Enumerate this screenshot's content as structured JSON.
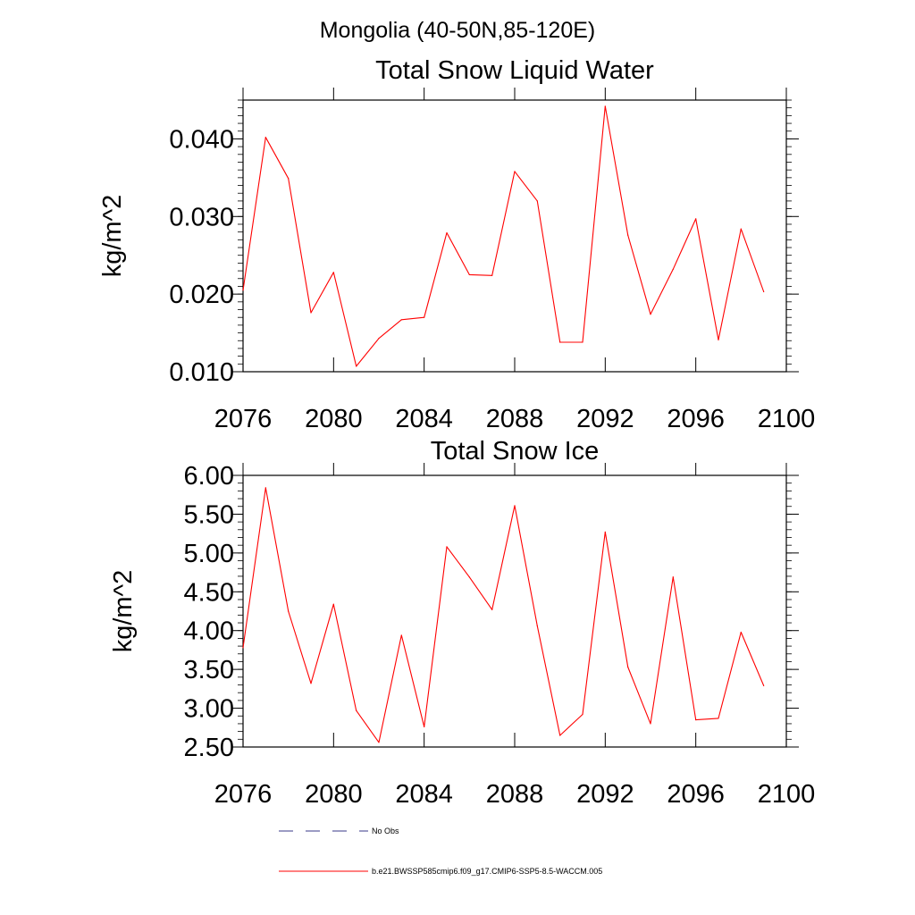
{
  "figure": {
    "title": "Mongolia (40-50N,85-120E)"
  },
  "chart_data": [
    {
      "type": "line",
      "title": "Total Snow Liquid Water",
      "xlabel": "",
      "ylabel": "kg/m^2",
      "xlim": [
        2076,
        2100
      ],
      "ylim": [
        0.01,
        0.045
      ],
      "xticks": [
        "2076",
        "2080",
        "2084",
        "2088",
        "2092",
        "2096",
        "2100"
      ],
      "yticks": [
        "0.010",
        "0.020",
        "0.030",
        "0.040"
      ],
      "grid": false,
      "series": [
        {
          "name": "b.e21.BWSSP585cmip6.f09_g17.CMIP6-SSP5-8.5-WACCM.005",
          "color": "#ff0000",
          "x": [
            2076,
            2077,
            2078,
            2079,
            2080,
            2081,
            2082,
            2083,
            2084,
            2085,
            2086,
            2087,
            2088,
            2089,
            2090,
            2091,
            2092,
            2093,
            2094,
            2095,
            2096,
            2097,
            2098,
            2099
          ],
          "values": [
            0.0205,
            0.0402,
            0.0349,
            0.0176,
            0.0228,
            0.0107,
            0.0143,
            0.0167,
            0.017,
            0.0279,
            0.0225,
            0.0224,
            0.0358,
            0.032,
            0.0138,
            0.0138,
            0.0442,
            0.0276,
            0.0174,
            0.0232,
            0.0297,
            0.0141,
            0.0284,
            0.0203
          ]
        }
      ]
    },
    {
      "type": "line",
      "title": "Total Snow Ice",
      "xlabel": "",
      "ylabel": "kg/m^2",
      "xlim": [
        2076,
        2100
      ],
      "ylim": [
        2.5,
        6.0
      ],
      "xticks": [
        "2076",
        "2080",
        "2084",
        "2088",
        "2092",
        "2096",
        "2100"
      ],
      "yticks": [
        "2.50",
        "3.00",
        "3.50",
        "4.00",
        "4.50",
        "5.00",
        "5.50",
        "6.00"
      ],
      "grid": false,
      "series": [
        {
          "name": "b.e21.BWSSP585cmip6.f09_g17.CMIP6-SSP5-8.5-WACCM.005",
          "color": "#ff0000",
          "x": [
            2076,
            2077,
            2078,
            2079,
            2080,
            2081,
            2082,
            2083,
            2084,
            2085,
            2086,
            2087,
            2088,
            2089,
            2090,
            2091,
            2092,
            2093,
            2094,
            2095,
            2096,
            2097,
            2098,
            2099
          ],
          "values": [
            3.78,
            5.84,
            4.25,
            3.32,
            4.34,
            2.97,
            2.56,
            3.94,
            2.76,
            5.08,
            4.69,
            4.27,
            5.61,
            4.06,
            2.65,
            2.92,
            5.27,
            3.53,
            2.8,
            4.69,
            2.85,
            2.87,
            3.98,
            3.29
          ]
        }
      ]
    }
  ],
  "legend": {
    "items": [
      {
        "label": "No Obs",
        "color": "#3a3a8a",
        "style": "dashed"
      },
      {
        "label": "b.e21.BWSSP585cmip6.f09_g17.CMIP6-SSP5-8.5-WACCM.005",
        "color": "#ff0000",
        "style": "solid"
      }
    ]
  }
}
